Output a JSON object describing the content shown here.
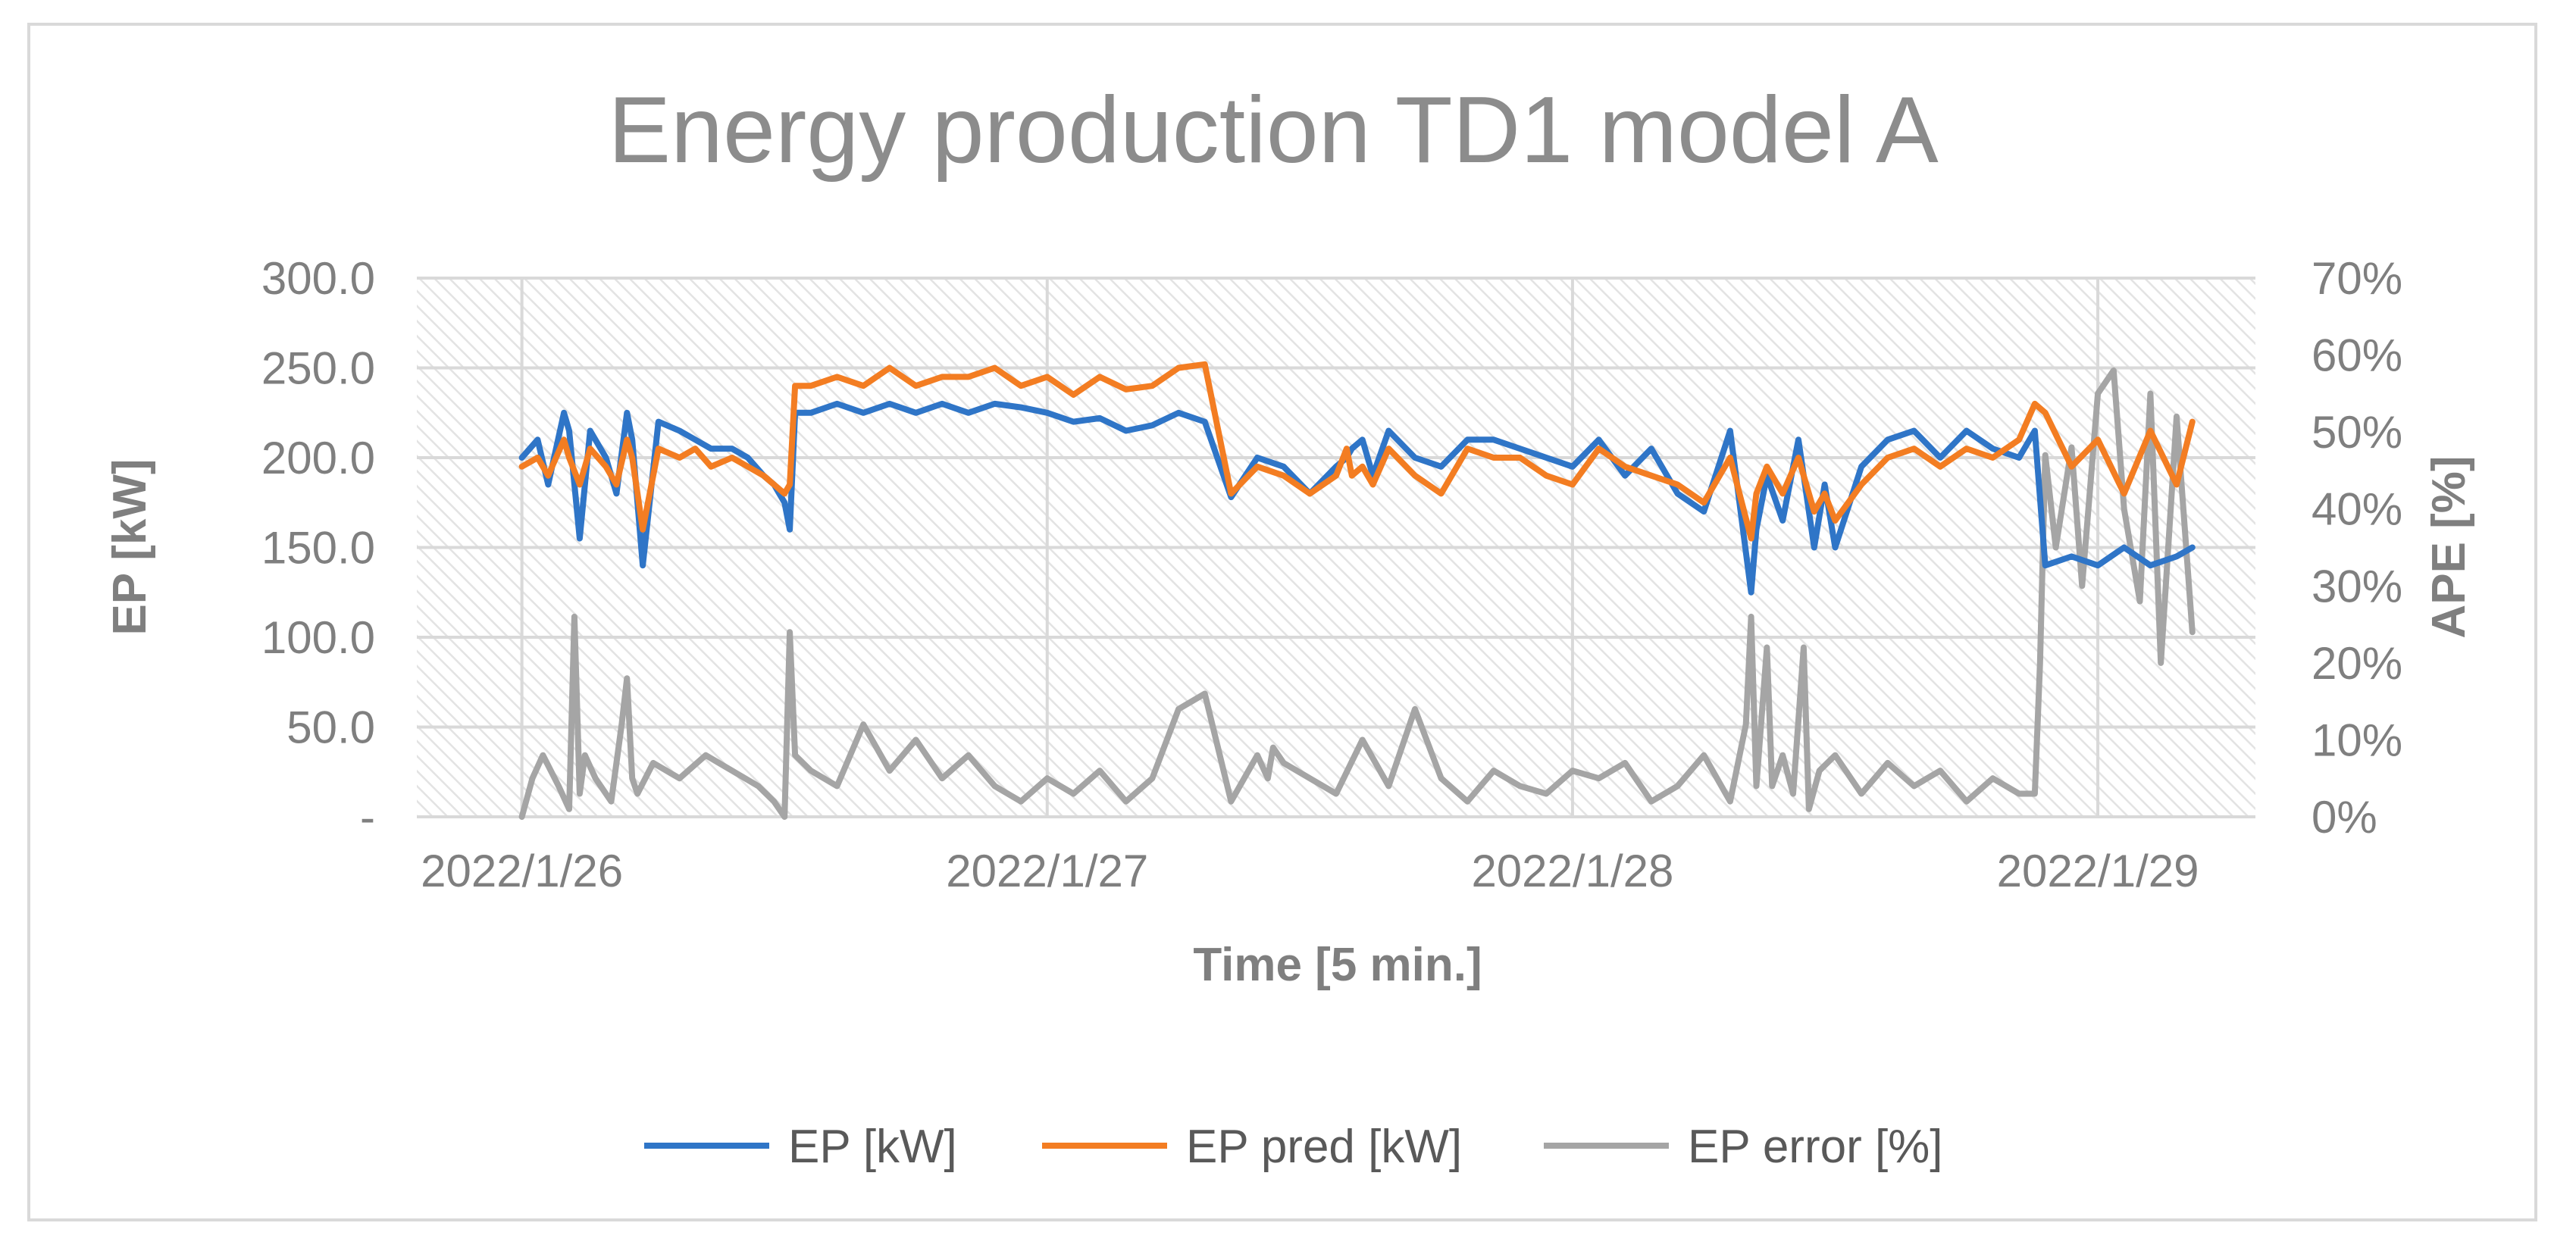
{
  "chart_data": {
    "type": "line",
    "title": "Energy production TD1 model A",
    "xlabel": "Time [5 min.]",
    "ylabel": "EP [kW]",
    "y2label": "APE [%]",
    "x_tick_labels": [
      "2022/1/26",
      "2022/1/27",
      "2022/1/28",
      "2022/1/29"
    ],
    "x_unit": "days since 2022/1/26",
    "xlim": [
      -0.2,
      3.3
    ],
    "ylim": [
      0,
      300
    ],
    "y2lim": [
      0,
      70
    ],
    "y_tick_values": [
      0,
      50,
      100,
      150,
      200,
      250,
      300
    ],
    "y_tick_labels": [
      "-",
      "50.0",
      "100.0",
      "150.0",
      "200.0",
      "250.0",
      "300.0"
    ],
    "y2_tick_values": [
      0,
      10,
      20,
      30,
      40,
      50,
      60,
      70
    ],
    "y2_tick_labels": [
      "0%",
      "10%",
      "20%",
      "30%",
      "40%",
      "50%",
      "60%",
      "70%"
    ],
    "grid": true,
    "legend_position": "bottom",
    "series": [
      {
        "name": "EP [kW]",
        "axis": "left",
        "color": "#2f75c7",
        "x": [
          0.0,
          0.03,
          0.05,
          0.08,
          0.09,
          0.11,
          0.13,
          0.16,
          0.18,
          0.2,
          0.21,
          0.23,
          0.26,
          0.3,
          0.33,
          0.36,
          0.4,
          0.43,
          0.46,
          0.48,
          0.5,
          0.51,
          0.52,
          0.55,
          0.6,
          0.65,
          0.7,
          0.75,
          0.8,
          0.85,
          0.9,
          0.95,
          1.0,
          1.05,
          1.1,
          1.15,
          1.2,
          1.25,
          1.3,
          1.35,
          1.4,
          1.45,
          1.5,
          1.55,
          1.57,
          1.58,
          1.6,
          1.62,
          1.65,
          1.7,
          1.75,
          1.8,
          1.85,
          1.9,
          1.95,
          2.0,
          2.05,
          2.1,
          2.15,
          2.2,
          2.25,
          2.3,
          2.34,
          2.35,
          2.37,
          2.4,
          2.43,
          2.46,
          2.48,
          2.5,
          2.55,
          2.6,
          2.65,
          2.7,
          2.75,
          2.8,
          2.85,
          2.88,
          2.9,
          2.95,
          3.0,
          3.05,
          3.1,
          3.15,
          3.18
        ],
        "values": [
          200,
          210,
          185,
          225,
          215,
          155,
          215,
          200,
          180,
          225,
          210,
          140,
          220,
          215,
          210,
          205,
          205,
          200,
          190,
          185,
          175,
          160,
          225,
          225,
          230,
          225,
          230,
          225,
          230,
          225,
          230,
          228,
          225,
          220,
          222,
          215,
          218,
          225,
          220,
          178,
          200,
          195,
          180,
          195,
          200,
          205,
          210,
          190,
          215,
          200,
          195,
          210,
          210,
          205,
          200,
          195,
          210,
          190,
          205,
          180,
          170,
          215,
          125,
          160,
          190,
          165,
          210,
          150,
          185,
          150,
          195,
          210,
          215,
          200,
          215,
          205,
          200,
          215,
          140,
          145,
          140,
          150,
          140,
          145,
          150
        ]
      },
      {
        "name": "EP pred [kW]",
        "axis": "left",
        "color": "#f37d22",
        "x": [
          0.0,
          0.03,
          0.05,
          0.08,
          0.09,
          0.11,
          0.13,
          0.16,
          0.18,
          0.2,
          0.21,
          0.23,
          0.26,
          0.3,
          0.33,
          0.36,
          0.4,
          0.43,
          0.46,
          0.48,
          0.5,
          0.51,
          0.52,
          0.55,
          0.6,
          0.65,
          0.7,
          0.75,
          0.8,
          0.85,
          0.9,
          0.95,
          1.0,
          1.05,
          1.1,
          1.15,
          1.2,
          1.25,
          1.3,
          1.35,
          1.4,
          1.45,
          1.5,
          1.55,
          1.57,
          1.58,
          1.6,
          1.62,
          1.65,
          1.7,
          1.75,
          1.8,
          1.85,
          1.9,
          1.95,
          2.0,
          2.05,
          2.1,
          2.15,
          2.2,
          2.25,
          2.3,
          2.34,
          2.35,
          2.37,
          2.4,
          2.43,
          2.46,
          2.48,
          2.5,
          2.55,
          2.6,
          2.65,
          2.7,
          2.75,
          2.8,
          2.85,
          2.88,
          2.9,
          2.95,
          3.0,
          3.05,
          3.1,
          3.15,
          3.18
        ],
        "values": [
          195,
          200,
          190,
          210,
          200,
          185,
          205,
          195,
          185,
          210,
          200,
          160,
          205,
          200,
          205,
          195,
          200,
          195,
          190,
          185,
          180,
          185,
          240,
          240,
          245,
          240,
          250,
          240,
          245,
          245,
          250,
          240,
          245,
          235,
          245,
          238,
          240,
          250,
          252,
          180,
          195,
          190,
          180,
          190,
          205,
          190,
          195,
          185,
          205,
          190,
          180,
          205,
          200,
          200,
          190,
          185,
          205,
          195,
          190,
          185,
          175,
          200,
          155,
          180,
          195,
          180,
          200,
          170,
          180,
          165,
          185,
          200,
          205,
          195,
          205,
          200,
          210,
          230,
          225,
          195,
          210,
          180,
          215,
          185,
          220
        ]
      },
      {
        "name": "EP error [%]",
        "axis": "right",
        "color": "#a5a5a5",
        "x": [
          0.0,
          0.02,
          0.04,
          0.07,
          0.09,
          0.1,
          0.11,
          0.12,
          0.14,
          0.17,
          0.19,
          0.2,
          0.21,
          0.22,
          0.25,
          0.3,
          0.35,
          0.4,
          0.45,
          0.48,
          0.5,
          0.51,
          0.52,
          0.55,
          0.6,
          0.65,
          0.7,
          0.75,
          0.8,
          0.85,
          0.9,
          0.95,
          1.0,
          1.05,
          1.1,
          1.15,
          1.2,
          1.25,
          1.3,
          1.35,
          1.4,
          1.42,
          1.43,
          1.45,
          1.5,
          1.55,
          1.6,
          1.65,
          1.7,
          1.75,
          1.8,
          1.85,
          1.9,
          1.95,
          2.0,
          2.05,
          2.1,
          2.15,
          2.2,
          2.25,
          2.3,
          2.33,
          2.34,
          2.35,
          2.37,
          2.38,
          2.4,
          2.42,
          2.44,
          2.45,
          2.47,
          2.5,
          2.55,
          2.6,
          2.65,
          2.7,
          2.75,
          2.8,
          2.85,
          2.88,
          2.89,
          2.9,
          2.92,
          2.95,
          2.97,
          3.0,
          3.03,
          3.05,
          3.08,
          3.1,
          3.12,
          3.15,
          3.18
        ],
        "values": [
          0,
          5,
          8,
          4,
          1,
          26,
          3,
          8,
          5,
          2,
          12,
          18,
          5,
          3,
          7,
          5,
          8,
          6,
          4,
          2,
          0,
          24,
          8,
          6,
          4,
          12,
          6,
          10,
          5,
          8,
          4,
          2,
          5,
          3,
          6,
          2,
          5,
          14,
          16,
          2,
          8,
          5,
          9,
          7,
          5,
          3,
          10,
          4,
          14,
          5,
          2,
          6,
          4,
          3,
          6,
          5,
          7,
          2,
          4,
          8,
          2,
          12,
          26,
          4,
          22,
          4,
          8,
          3,
          22,
          1,
          6,
          8,
          3,
          7,
          4,
          6,
          2,
          5,
          3,
          3,
          20,
          47,
          35,
          48,
          30,
          55,
          58,
          40,
          28,
          55,
          20,
          52,
          24
        ]
      }
    ]
  },
  "legend": {
    "items": [
      {
        "label": "EP [kW]",
        "color": "#2f75c7"
      },
      {
        "label": "EP pred [kW]",
        "color": "#f37d22"
      },
      {
        "label": "EP error [%]",
        "color": "#a5a5a5"
      }
    ]
  },
  "colors": {
    "grid": "#d9d9d9",
    "plot_hatch": "#e6e6e6",
    "frame_border": "#d9d9d9"
  }
}
